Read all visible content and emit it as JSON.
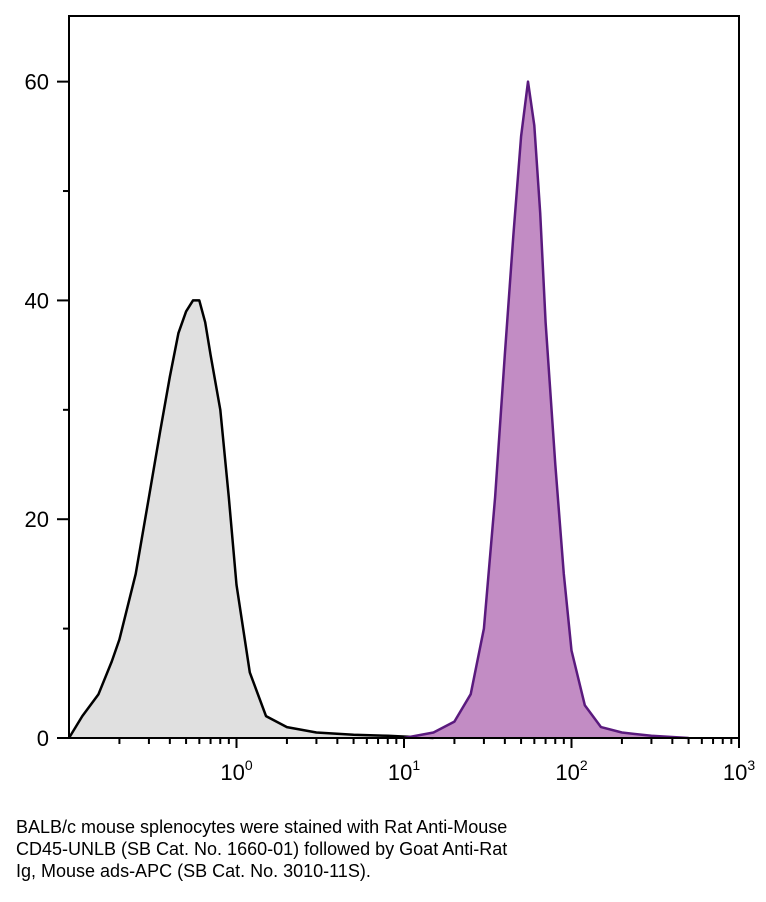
{
  "chart_data": {
    "type": "area",
    "title": "",
    "xlabel": "",
    "ylabel": "",
    "x_scale": "log",
    "xlim": [
      0.1,
      1000
    ],
    "ylim": [
      0,
      66
    ],
    "grid": false,
    "legend": "none",
    "x_ticks": [
      {
        "base": "10",
        "exp": "0",
        "value": 1
      },
      {
        "base": "10",
        "exp": "1",
        "value": 10
      },
      {
        "base": "10",
        "exp": "2",
        "value": 100
      },
      {
        "base": "10",
        "exp": "3",
        "value": 1000
      }
    ],
    "y_ticks": [
      {
        "label": "0",
        "value": 0
      },
      {
        "label": "20",
        "value": 20
      },
      {
        "label": "40",
        "value": 40
      },
      {
        "label": "60",
        "value": 60
      }
    ],
    "series": [
      {
        "stroke": "#000000",
        "fill": "#e0e0e0",
        "x": [
          0.1,
          0.12,
          0.15,
          0.18,
          0.2,
          0.25,
          0.3,
          0.35,
          0.4,
          0.45,
          0.5,
          0.55,
          0.6,
          0.65,
          0.7,
          0.8,
          0.9,
          1.0,
          1.2,
          1.5,
          2,
          3,
          5,
          8,
          15
        ],
        "y": [
          0,
          2,
          4,
          7,
          9,
          15,
          22,
          28,
          33,
          37,
          39,
          40,
          40,
          38,
          35,
          30,
          22,
          14,
          6,
          2,
          1,
          0.5,
          0.3,
          0.2,
          0
        ]
      },
      {
        "stroke": "#5a1a7e",
        "fill": "#c28cc4",
        "x": [
          10,
          15,
          20,
          25,
          30,
          35,
          40,
          45,
          50,
          55,
          60,
          65,
          70,
          80,
          90,
          100,
          120,
          150,
          200,
          300,
          500
        ],
        "y": [
          0,
          0.5,
          1.5,
          4,
          10,
          22,
          35,
          46,
          55,
          60,
          56,
          48,
          38,
          25,
          15,
          8,
          3,
          1,
          0.5,
          0.2,
          0
        ]
      }
    ]
  },
  "caption": {
    "line1": "BALB/c mouse splenocytes were stained with Rat Anti-Mouse",
    "line2": "CD45-UNLB (SB Cat. No. 1660-01) followed by Goat Anti-Rat",
    "line3": "Ig, Mouse ads-APC (SB Cat. No. 3010-11S)."
  }
}
